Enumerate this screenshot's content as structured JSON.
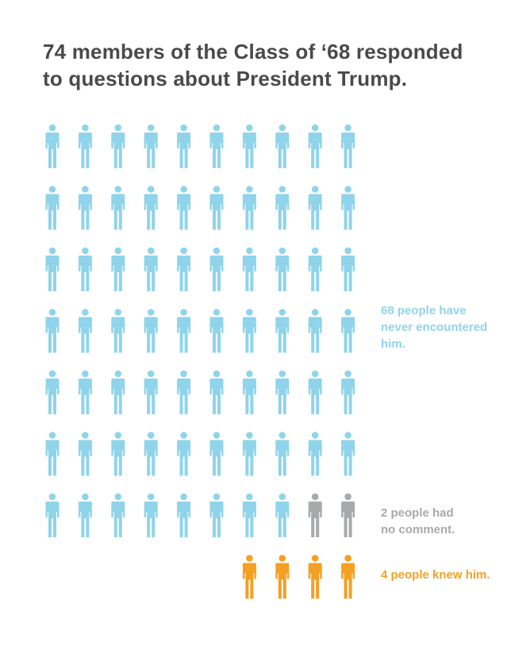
{
  "title": {
    "line1": "74 members of the Class of ‘68 responded",
    "line2": "to questions about President Trump."
  },
  "colors": {
    "never": "#8fd4ea",
    "no_comment": "#a8a9ab",
    "knew": "#f4a023",
    "title": "#4a4a4a"
  },
  "chart_data": {
    "type": "pictogram",
    "title": "74 members of the Class of ‘68 responded to questions about President Trump.",
    "total": 74,
    "grid_columns": 10,
    "series": [
      {
        "key": "never",
        "value": 68,
        "color": "#8fd4ea",
        "label_lines": [
          "68 people have",
          "never encountered",
          "him."
        ]
      },
      {
        "key": "no_comment",
        "value": 2,
        "color": "#a8a9ab",
        "label_lines": [
          "2 people had",
          "no comment."
        ]
      },
      {
        "key": "knew",
        "value": 4,
        "color": "#f4a023",
        "label_lines": [
          "4 people knew him."
        ]
      }
    ]
  }
}
